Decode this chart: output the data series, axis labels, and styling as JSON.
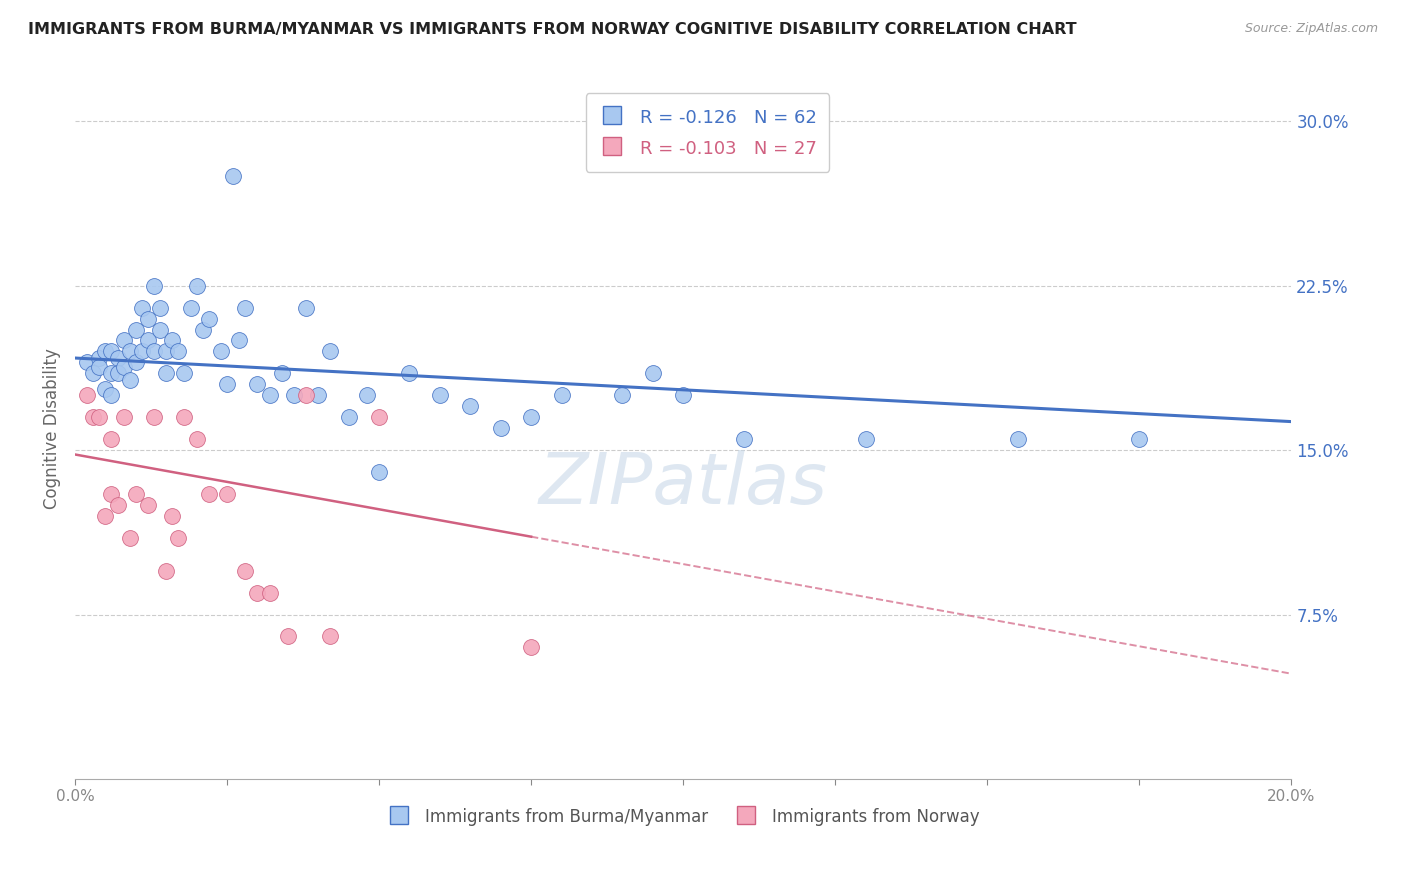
{
  "title": "IMMIGRANTS FROM BURMA/MYANMAR VS IMMIGRANTS FROM NORWAY COGNITIVE DISABILITY CORRELATION CHART",
  "source": "Source: ZipAtlas.com",
  "ylabel": "Cognitive Disability",
  "right_yticks": [
    "7.5%",
    "15.0%",
    "22.5%",
    "30.0%"
  ],
  "right_ytick_vals": [
    0.075,
    0.15,
    0.225,
    0.3
  ],
  "xlim": [
    0.0,
    0.2
  ],
  "ylim": [
    0.0,
    0.32
  ],
  "color_blue": "#a8c8f0",
  "color_pink": "#f4a8bc",
  "trendline_blue": "#4472c4",
  "trendline_pink": "#d06080",
  "scatter_blue_x": [
    0.002,
    0.003,
    0.004,
    0.004,
    0.005,
    0.005,
    0.006,
    0.006,
    0.006,
    0.007,
    0.007,
    0.008,
    0.008,
    0.009,
    0.009,
    0.01,
    0.01,
    0.011,
    0.011,
    0.012,
    0.012,
    0.013,
    0.013,
    0.014,
    0.014,
    0.015,
    0.015,
    0.016,
    0.017,
    0.018,
    0.019,
    0.02,
    0.021,
    0.022,
    0.024,
    0.025,
    0.026,
    0.027,
    0.028,
    0.03,
    0.032,
    0.034,
    0.036,
    0.038,
    0.04,
    0.042,
    0.045,
    0.048,
    0.05,
    0.055,
    0.06,
    0.065,
    0.07,
    0.075,
    0.08,
    0.09,
    0.095,
    0.1,
    0.11,
    0.13,
    0.155,
    0.175
  ],
  "scatter_blue_y": [
    0.19,
    0.185,
    0.192,
    0.188,
    0.195,
    0.178,
    0.195,
    0.185,
    0.175,
    0.192,
    0.185,
    0.2,
    0.188,
    0.195,
    0.182,
    0.205,
    0.19,
    0.215,
    0.195,
    0.21,
    0.2,
    0.225,
    0.195,
    0.215,
    0.205,
    0.195,
    0.185,
    0.2,
    0.195,
    0.185,
    0.215,
    0.225,
    0.205,
    0.21,
    0.195,
    0.18,
    0.275,
    0.2,
    0.215,
    0.18,
    0.175,
    0.185,
    0.175,
    0.215,
    0.175,
    0.195,
    0.165,
    0.175,
    0.14,
    0.185,
    0.175,
    0.17,
    0.16,
    0.165,
    0.175,
    0.175,
    0.185,
    0.175,
    0.155,
    0.155,
    0.155,
    0.155
  ],
  "scatter_pink_x": [
    0.002,
    0.003,
    0.004,
    0.005,
    0.006,
    0.006,
    0.007,
    0.008,
    0.009,
    0.01,
    0.012,
    0.013,
    0.015,
    0.016,
    0.017,
    0.018,
    0.02,
    0.022,
    0.025,
    0.028,
    0.03,
    0.032,
    0.035,
    0.038,
    0.042,
    0.05,
    0.075
  ],
  "scatter_pink_y": [
    0.175,
    0.165,
    0.165,
    0.12,
    0.155,
    0.13,
    0.125,
    0.165,
    0.11,
    0.13,
    0.125,
    0.165,
    0.095,
    0.12,
    0.11,
    0.165,
    0.155,
    0.13,
    0.13,
    0.095,
    0.085,
    0.085,
    0.065,
    0.175,
    0.065,
    0.165,
    0.06
  ],
  "trend_blue_x0": 0.0,
  "trend_blue_x1": 0.2,
  "trend_blue_y0": 0.192,
  "trend_blue_y1": 0.163,
  "trend_pink_x0": 0.0,
  "trend_pink_x1": 0.2,
  "trend_pink_y0": 0.148,
  "trend_pink_y1": 0.048,
  "trend_pink_solid_end": 0.075,
  "legend_label_blue": "Immigrants from Burma/Myanmar",
  "legend_label_pink": "Immigrants from Norway",
  "background_color": "#ffffff",
  "grid_color": "#cccccc",
  "watermark_text": "ZIPatlas",
  "watermark_color": "#c8d8e8"
}
